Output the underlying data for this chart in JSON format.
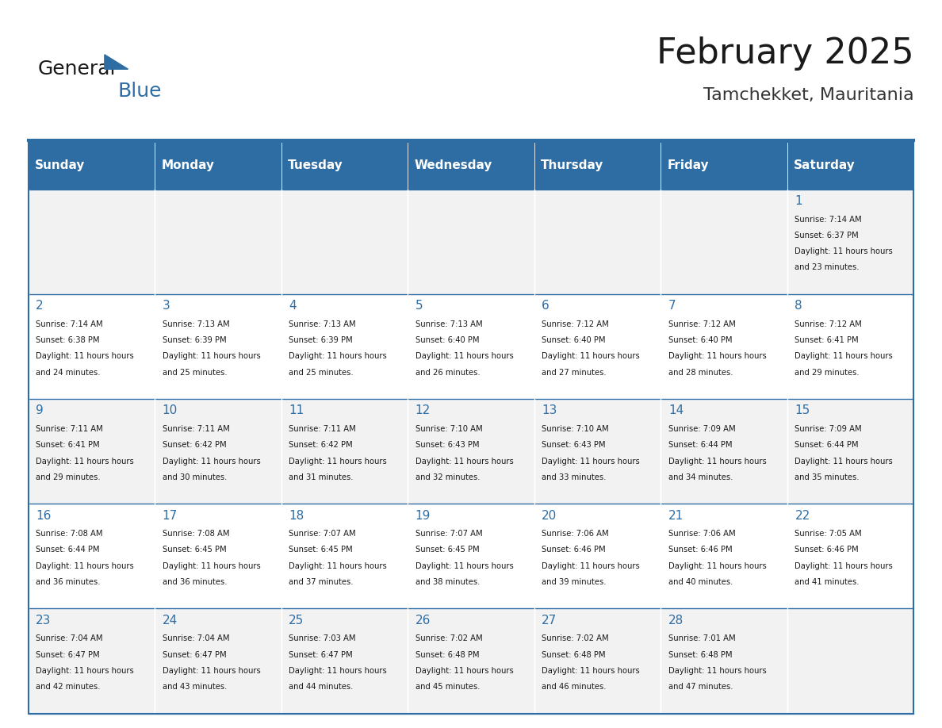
{
  "title": "February 2025",
  "subtitle": "Tamchekket, Mauritania",
  "header_bg": "#2E6DA4",
  "header_text_color": "#FFFFFF",
  "cell_bg_odd": "#F2F2F2",
  "cell_bg_even": "#FFFFFF",
  "day_names": [
    "Sunday",
    "Monday",
    "Tuesday",
    "Wednesday",
    "Thursday",
    "Friday",
    "Saturday"
  ],
  "days": [
    {
      "day": 1,
      "col": 6,
      "row": 0,
      "sunrise": "7:14 AM",
      "sunset": "6:37 PM",
      "daylight": "11 hours and 23 minutes."
    },
    {
      "day": 2,
      "col": 0,
      "row": 1,
      "sunrise": "7:14 AM",
      "sunset": "6:38 PM",
      "daylight": "11 hours and 24 minutes."
    },
    {
      "day": 3,
      "col": 1,
      "row": 1,
      "sunrise": "7:13 AM",
      "sunset": "6:39 PM",
      "daylight": "11 hours and 25 minutes."
    },
    {
      "day": 4,
      "col": 2,
      "row": 1,
      "sunrise": "7:13 AM",
      "sunset": "6:39 PM",
      "daylight": "11 hours and 25 minutes."
    },
    {
      "day": 5,
      "col": 3,
      "row": 1,
      "sunrise": "7:13 AM",
      "sunset": "6:40 PM",
      "daylight": "11 hours and 26 minutes."
    },
    {
      "day": 6,
      "col": 4,
      "row": 1,
      "sunrise": "7:12 AM",
      "sunset": "6:40 PM",
      "daylight": "11 hours and 27 minutes."
    },
    {
      "day": 7,
      "col": 5,
      "row": 1,
      "sunrise": "7:12 AM",
      "sunset": "6:40 PM",
      "daylight": "11 hours and 28 minutes."
    },
    {
      "day": 8,
      "col": 6,
      "row": 1,
      "sunrise": "7:12 AM",
      "sunset": "6:41 PM",
      "daylight": "11 hours and 29 minutes."
    },
    {
      "day": 9,
      "col": 0,
      "row": 2,
      "sunrise": "7:11 AM",
      "sunset": "6:41 PM",
      "daylight": "11 hours and 29 minutes."
    },
    {
      "day": 10,
      "col": 1,
      "row": 2,
      "sunrise": "7:11 AM",
      "sunset": "6:42 PM",
      "daylight": "11 hours and 30 minutes."
    },
    {
      "day": 11,
      "col": 2,
      "row": 2,
      "sunrise": "7:11 AM",
      "sunset": "6:42 PM",
      "daylight": "11 hours and 31 minutes."
    },
    {
      "day": 12,
      "col": 3,
      "row": 2,
      "sunrise": "7:10 AM",
      "sunset": "6:43 PM",
      "daylight": "11 hours and 32 minutes."
    },
    {
      "day": 13,
      "col": 4,
      "row": 2,
      "sunrise": "7:10 AM",
      "sunset": "6:43 PM",
      "daylight": "11 hours and 33 minutes."
    },
    {
      "day": 14,
      "col": 5,
      "row": 2,
      "sunrise": "7:09 AM",
      "sunset": "6:44 PM",
      "daylight": "11 hours and 34 minutes."
    },
    {
      "day": 15,
      "col": 6,
      "row": 2,
      "sunrise": "7:09 AM",
      "sunset": "6:44 PM",
      "daylight": "11 hours and 35 minutes."
    },
    {
      "day": 16,
      "col": 0,
      "row": 3,
      "sunrise": "7:08 AM",
      "sunset": "6:44 PM",
      "daylight": "11 hours and 36 minutes."
    },
    {
      "day": 17,
      "col": 1,
      "row": 3,
      "sunrise": "7:08 AM",
      "sunset": "6:45 PM",
      "daylight": "11 hours and 36 minutes."
    },
    {
      "day": 18,
      "col": 2,
      "row": 3,
      "sunrise": "7:07 AM",
      "sunset": "6:45 PM",
      "daylight": "11 hours and 37 minutes."
    },
    {
      "day": 19,
      "col": 3,
      "row": 3,
      "sunrise": "7:07 AM",
      "sunset": "6:45 PM",
      "daylight": "11 hours and 38 minutes."
    },
    {
      "day": 20,
      "col": 4,
      "row": 3,
      "sunrise": "7:06 AM",
      "sunset": "6:46 PM",
      "daylight": "11 hours and 39 minutes."
    },
    {
      "day": 21,
      "col": 5,
      "row": 3,
      "sunrise": "7:06 AM",
      "sunset": "6:46 PM",
      "daylight": "11 hours and 40 minutes."
    },
    {
      "day": 22,
      "col": 6,
      "row": 3,
      "sunrise": "7:05 AM",
      "sunset": "6:46 PM",
      "daylight": "11 hours and 41 minutes."
    },
    {
      "day": 23,
      "col": 0,
      "row": 4,
      "sunrise": "7:04 AM",
      "sunset": "6:47 PM",
      "daylight": "11 hours and 42 minutes."
    },
    {
      "day": 24,
      "col": 1,
      "row": 4,
      "sunrise": "7:04 AM",
      "sunset": "6:47 PM",
      "daylight": "11 hours and 43 minutes."
    },
    {
      "day": 25,
      "col": 2,
      "row": 4,
      "sunrise": "7:03 AM",
      "sunset": "6:47 PM",
      "daylight": "11 hours and 44 minutes."
    },
    {
      "day": 26,
      "col": 3,
      "row": 4,
      "sunrise": "7:02 AM",
      "sunset": "6:48 PM",
      "daylight": "11 hours and 45 minutes."
    },
    {
      "day": 27,
      "col": 4,
      "row": 4,
      "sunrise": "7:02 AM",
      "sunset": "6:48 PM",
      "daylight": "11 hours and 46 minutes."
    },
    {
      "day": 28,
      "col": 5,
      "row": 4,
      "sunrise": "7:01 AM",
      "sunset": "6:48 PM",
      "daylight": "11 hours and 47 minutes."
    }
  ],
  "num_rows": 5,
  "num_cols": 7,
  "logo_text_general": "General",
  "logo_text_blue": "Blue",
  "logo_color_general": "#1a1a1a",
  "logo_color_blue": "#2E6DA4",
  "logo_triangle_color": "#2E6DA4"
}
